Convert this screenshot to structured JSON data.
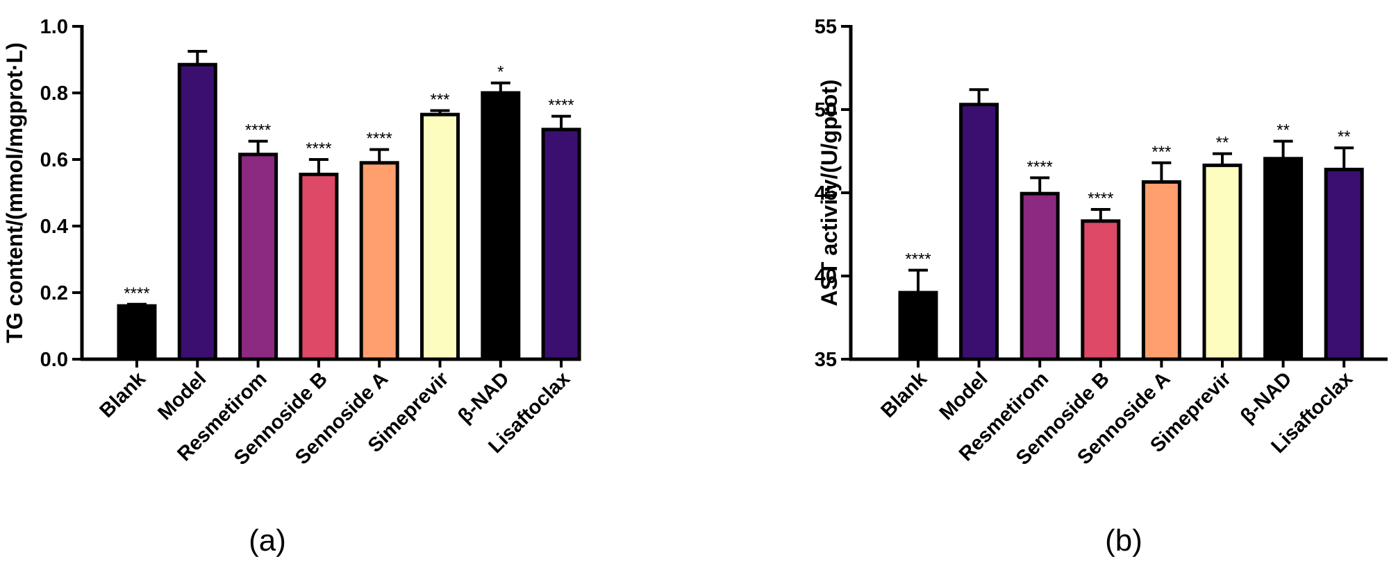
{
  "colors": {
    "Blank": "#000000",
    "Model": "#3b0f70",
    "Resmetirom": "#8c2981",
    "Sennoside B": "#de4968",
    "Sennoside A": "#fe9f6d",
    "Simeprevir": "#fcfdbf",
    "β-NAD": "#000000",
    "Lisaftoclax": "#3b0f70"
  },
  "chart_data": [
    {
      "type": "bar",
      "panel_label": "(a)",
      "ylabel": "TG content/(mmol/mgprot·L)",
      "xlabel": "",
      "categories": [
        "Blank",
        "Model",
        "Resmetirom",
        "Sennoside B",
        "Sennoside A",
        "Simeprevir",
        "β-NAD",
        "Lisaftoclax"
      ],
      "values": [
        0.16,
        0.885,
        0.615,
        0.555,
        0.59,
        0.735,
        0.8,
        0.69
      ],
      "error": [
        0.005,
        0.04,
        0.04,
        0.045,
        0.04,
        0.012,
        0.03,
        0.04
      ],
      "significance": [
        "****",
        "",
        "****",
        "****",
        "****",
        "***",
        "*",
        "****"
      ],
      "ylim": [
        0,
        1.0
      ],
      "yticks": [
        0.0,
        0.2,
        0.4,
        0.6,
        0.8,
        1.0
      ],
      "ytick_labels": [
        "0.0",
        "0.2",
        "0.4",
        "0.6",
        "0.8",
        "1.0"
      ],
      "grid": false
    },
    {
      "type": "bar",
      "panel_label": "(b)",
      "ylabel": "AST activity/(U/gprot)",
      "xlabel": "",
      "categories": [
        "Blank",
        "Model",
        "Resmetirom",
        "Sennoside B",
        "Sennoside A",
        "Simeprevir",
        "β-NAD",
        "Lisaftoclax"
      ],
      "values": [
        39.0,
        50.3,
        44.95,
        43.3,
        45.65,
        46.65,
        47.05,
        46.4
      ],
      "error": [
        1.35,
        0.9,
        0.95,
        0.7,
        1.15,
        0.7,
        1.05,
        1.3
      ],
      "significance": [
        "****",
        "",
        "****",
        "****",
        "***",
        "**",
        "**",
        "**"
      ],
      "ylim": [
        35,
        55
      ],
      "yticks": [
        35,
        40,
        45,
        50,
        55
      ],
      "ytick_labels": [
        "35",
        "40",
        "45",
        "50",
        "55"
      ],
      "grid": false
    }
  ]
}
